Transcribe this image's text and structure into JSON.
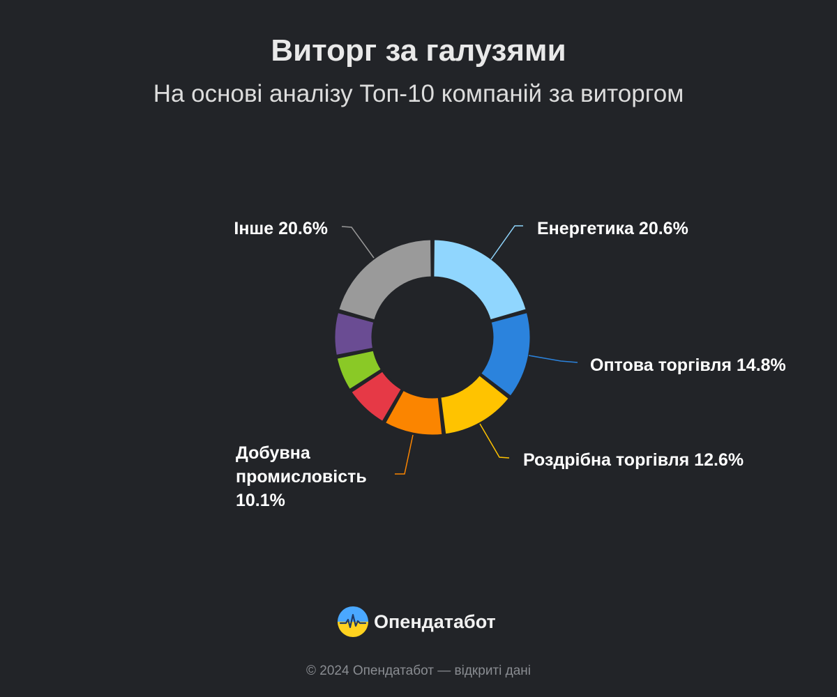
{
  "header": {
    "title": "Виторг за галузями",
    "subtitle": "На основі аналізу Топ-10 компаній за виторгом"
  },
  "chart_data": {
    "type": "pie",
    "variant": "donut",
    "slices": [
      {
        "label": "Енергетика",
        "label_text": "Енергетика 20.6%",
        "value": 20.6,
        "color": "#90d6fe",
        "labeled": true
      },
      {
        "label": "Оптова торгівля",
        "label_text": "Оптова торгівля 14.8%",
        "value": 14.8,
        "color": "#2b83dd",
        "labeled": true
      },
      {
        "label": "Роздрібна торгівля",
        "label_text": "Роздрібна торгівля 12.6%",
        "value": 12.6,
        "color": "#ffc300",
        "labeled": true
      },
      {
        "label": "Добувна промисловість",
        "label_lines": [
          "Добувна",
          "промисловість",
          "10.1%"
        ],
        "value": 10.1,
        "color": "#fb8500",
        "labeled": true
      },
      {
        "label": "",
        "value": 7.5,
        "color": "#e63946",
        "labeled": false
      },
      {
        "label": "",
        "value": 6.0,
        "color": "#8ac926",
        "labeled": false
      },
      {
        "label": "",
        "value": 7.5,
        "color": "#6a4c93",
        "labeled": false
      },
      {
        "label": "Інше",
        "label_text": "Інше 20.6%",
        "value": 20.6,
        "color": "#9a9a9a",
        "labeled": true
      }
    ]
  },
  "branding": {
    "logo_text": "Опендатабот",
    "logo_icon": "opendatabot-logo-icon",
    "logo_colors": [
      "#4aa8ff",
      "#ffd21f"
    ]
  },
  "footer": {
    "text": "© 2024 Опендатабот — відкриті дані"
  }
}
